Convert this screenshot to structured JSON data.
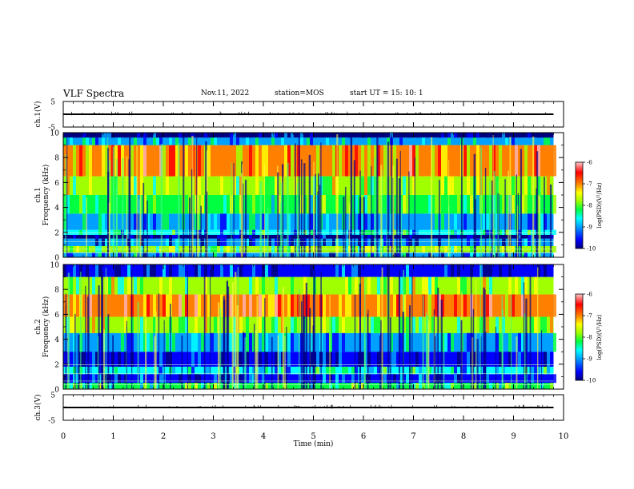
{
  "header": {
    "title": "VLF Spectra",
    "date": "Nov.11, 2022",
    "station": "station=MOS",
    "start": "start  UT =   15: 10: 1"
  },
  "colors": {
    "cmap": [
      "#000080",
      "#0000ff",
      "#00a0ff",
      "#00ffff",
      "#00ff40",
      "#a0ff00",
      "#ffff00",
      "#ff8000",
      "#ff0000",
      "#ffb0b0"
    ],
    "trace": "#000000"
  },
  "chart_data": [
    {
      "type": "line",
      "title": "VLF Spectra",
      "ylabel": "ch.1(V)",
      "ylim": [
        -5,
        5
      ],
      "yticks": [
        "5",
        "-5"
      ],
      "xlim": [
        0,
        10
      ],
      "series": [
        {
          "x": [
            0,
            9.8
          ],
          "y": [
            0,
            0
          ]
        }
      ]
    },
    {
      "type": "heatmap",
      "ylabel": "ch.1\nFrequency (kHz)",
      "xlim": [
        0,
        10
      ],
      "ylim": [
        0,
        10
      ],
      "yticks": [
        "0",
        "2",
        "4",
        "6",
        "8",
        "10"
      ],
      "data_extent_min": 9.8,
      "colorbar": {
        "label": "log(PSD)(V²/Hz)",
        "range": [
          -10,
          -6
        ],
        "ticks": [
          "-6",
          "-7",
          "-8",
          "-9",
          "-10"
        ]
      },
      "bands": [
        {
          "f": [
            0,
            0.4
          ],
          "level": -9.0
        },
        {
          "f": [
            0.4,
            0.9
          ],
          "level": -8.0
        },
        {
          "f": [
            0.9,
            1.5
          ],
          "level": -9.2
        },
        {
          "f": [
            1.5,
            1.8
          ],
          "level": -9.8
        },
        {
          "f": [
            1.8,
            2.2
          ],
          "level": -8.6
        },
        {
          "f": [
            2.2,
            3.5
          ],
          "level": -8.8
        },
        {
          "f": [
            3.5,
            5.0
          ],
          "level": -8.2
        },
        {
          "f": [
            5.0,
            6.5
          ],
          "level": -7.7
        },
        {
          "f": [
            6.5,
            9.0
          ],
          "level": -7.1
        },
        {
          "f": [
            9.0,
            9.6
          ],
          "level": -8.8
        },
        {
          "f": [
            9.6,
            10.0
          ],
          "level": -9.8
        }
      ]
    },
    {
      "type": "heatmap",
      "ylabel": "ch.2\nFrequency (kHz)",
      "xlim": [
        0,
        10
      ],
      "ylim": [
        0,
        10
      ],
      "yticks": [
        "0",
        "2",
        "4",
        "6",
        "8",
        "10"
      ],
      "data_extent_min": 9.8,
      "colorbar": {
        "label": "log(PSD)(V²/Hz)",
        "range": [
          -10,
          -6
        ],
        "ticks": [
          "-6",
          "-7",
          "-8",
          "-9",
          "-10"
        ]
      },
      "bands": [
        {
          "f": [
            0,
            0.5
          ],
          "level": -8.2
        },
        {
          "f": [
            0.5,
            1.2
          ],
          "level": -9.3
        },
        {
          "f": [
            1.2,
            1.8
          ],
          "level": -8.7
        },
        {
          "f": [
            1.8,
            3.0
          ],
          "level": -9.6
        },
        {
          "f": [
            3.0,
            4.5
          ],
          "level": -8.8
        },
        {
          "f": [
            4.5,
            5.8
          ],
          "level": -7.9
        },
        {
          "f": [
            5.8,
            7.6
          ],
          "level": -6.9
        },
        {
          "f": [
            7.6,
            9.0
          ],
          "level": -7.9
        },
        {
          "f": [
            9.0,
            10.0
          ],
          "level": -9.5
        }
      ]
    },
    {
      "type": "line",
      "ylabel": "ch.3(V)",
      "xlabel": "Time  (min)",
      "ylim": [
        -5,
        5
      ],
      "yticks": [
        "5",
        "-5"
      ],
      "xlim": [
        0,
        10
      ],
      "xticks": [
        "0",
        "1",
        "2",
        "3",
        "4",
        "5",
        "6",
        "7",
        "8",
        "9",
        "10"
      ],
      "series": [
        {
          "x": [
            0,
            9.8
          ],
          "y": [
            0,
            0
          ]
        }
      ]
    }
  ]
}
